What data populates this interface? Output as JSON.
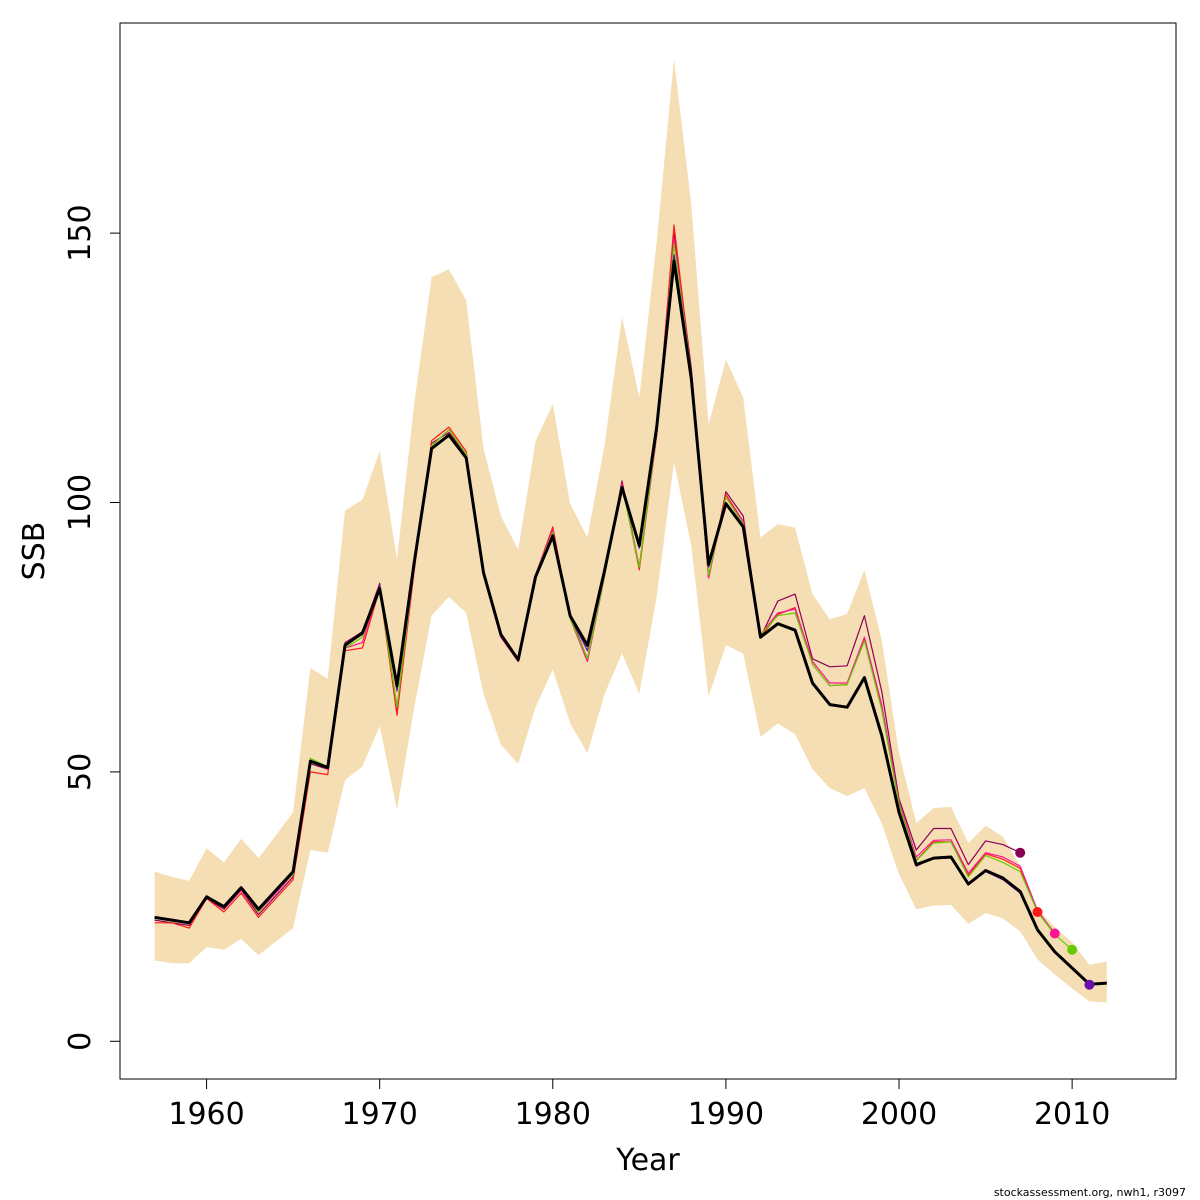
{
  "chart_data": {
    "type": "line",
    "title": "",
    "xlabel": "Year",
    "ylabel": "SSB",
    "xlim": [
      1955,
      2016
    ],
    "ylim": [
      -7,
      189
    ],
    "x_ticks": [
      1960,
      1970,
      1980,
      1990,
      2000,
      2010
    ],
    "y_ticks": [
      0,
      50,
      100,
      150
    ],
    "grid": false,
    "colors": {
      "band": "#f5deb3",
      "main": "#000000",
      "retro": [
        "#8b0057",
        "#ff1a1a",
        "#ff1493",
        "#66cc00",
        "#6a0dad"
      ]
    },
    "confidence_band": {
      "years": [
        1957,
        1958,
        1959,
        1960,
        1961,
        1962,
        1963,
        1964,
        1965,
        1966,
        1967,
        1968,
        1969,
        1970,
        1971,
        1972,
        1973,
        1974,
        1975,
        1976,
        1977,
        1978,
        1979,
        1980,
        1981,
        1982,
        1983,
        1984,
        1985,
        1986,
        1987,
        1988,
        1989,
        1990,
        1991,
        1992,
        1993,
        1994,
        1995,
        1996,
        1997,
        1998,
        1999,
        2000,
        2001,
        2002,
        2003,
        2004,
        2005,
        2006,
        2007,
        2008,
        2009,
        2010,
        2011,
        2012
      ],
      "lower": [
        15,
        14.5,
        14.5,
        17.5,
        17,
        19,
        16,
        18.5,
        21,
        35.5,
        35,
        48.5,
        51,
        58.5,
        43,
        62,
        79,
        82.5,
        79.5,
        64.5,
        55,
        51.5,
        62,
        69,
        59,
        53.5,
        64.5,
        72,
        64.5,
        82.5,
        107.5,
        92,
        64,
        73.5,
        72,
        56.5,
        59,
        57,
        50.5,
        47,
        45.5,
        47,
        40.5,
        31,
        24.5,
        25.2,
        25.3,
        21.8,
        23.8,
        22.8,
        20.4,
        15.2,
        12.4,
        9.8,
        7.4,
        7.2
      ],
      "upper": [
        31.5,
        30.5,
        29.8,
        35.8,
        33.2,
        37.6,
        34,
        38.2,
        42.5,
        69.3,
        67.3,
        98.5,
        100.5,
        109.5,
        89.5,
        118.5,
        141.8,
        143.3,
        137.5,
        110,
        97.5,
        91.2,
        111.3,
        118.3,
        99.8,
        93.5,
        110.8,
        134.5,
        119.5,
        148.5,
        182.3,
        155.3,
        114.5,
        126.5,
        119.5,
        93.5,
        96,
        95.3,
        83,
        78.3,
        79.3,
        87.5,
        74.5,
        53.5,
        40.5,
        43.3,
        43.5,
        36.8,
        40,
        38,
        32.5,
        24.6,
        21.2,
        18.4,
        14.2,
        14.8
      ]
    },
    "series": [
      {
        "x": [
          1957,
          1958,
          1959,
          1960,
          1961,
          1962,
          1963,
          1964,
          1965,
          1966,
          1967,
          1968,
          1969,
          1970,
          1971,
          1972,
          1973,
          1974,
          1975,
          1976,
          1977,
          1978,
          1979,
          1980,
          1981,
          1982,
          1983,
          1984,
          1985,
          1986,
          1987,
          1988,
          1989,
          1990,
          1991,
          1992,
          1993,
          1994,
          1995,
          1996,
          1997,
          1998,
          1999,
          2000,
          2001,
          2002,
          2003,
          2004,
          2005,
          2006,
          2007
        ],
        "values": [
          22.5,
          22,
          21.5,
          26.5,
          24.5,
          28,
          23.5,
          27,
          30.5,
          51.5,
          50.5,
          74,
          76,
          85,
          61,
          89,
          111,
          113,
          109,
          87,
          75,
          70.5,
          86.5,
          95,
          79,
          71,
          87,
          104,
          88,
          113,
          150,
          125,
          86,
          102,
          97.5,
          75,
          81.7,
          83,
          71,
          69.5,
          69.7,
          79,
          65,
          45,
          35.5,
          39.5,
          39.5,
          32.8,
          37.2,
          36.5,
          35
        ]
      },
      {
        "x": [
          1957,
          1958,
          1959,
          1960,
          1961,
          1962,
          1963,
          1964,
          1965,
          1966,
          1967,
          1968,
          1969,
          1970,
          1971,
          1972,
          1973,
          1974,
          1975,
          1976,
          1977,
          1978,
          1979,
          1980,
          1981,
          1982,
          1983,
          1984,
          1985,
          1986,
          1987,
          1988,
          1989,
          1990,
          1991,
          1992,
          1993,
          1994,
          1995,
          1996,
          1997,
          1998,
          1999,
          2000,
          2001,
          2002,
          2003,
          2004,
          2005,
          2006,
          2007,
          2008
        ],
        "values": [
          22,
          22,
          21,
          26.5,
          24,
          27.5,
          23,
          26.5,
          30,
          50,
          49.5,
          72.5,
          73,
          84,
          60.5,
          87.5,
          111.5,
          114,
          109.5,
          86.5,
          75,
          70.5,
          86.5,
          95.5,
          78.5,
          70.5,
          86.5,
          103.5,
          87.5,
          112.5,
          151.5,
          124,
          86,
          101.5,
          96.5,
          75,
          79.2,
          80.5,
          70,
          66,
          66.2,
          74.8,
          62,
          44,
          33.6,
          37,
          37,
          30.8,
          34.8,
          33.8,
          32.1,
          24
        ]
      },
      {
        "x": [
          1957,
          1958,
          1959,
          1960,
          1961,
          1962,
          1963,
          1964,
          1965,
          1966,
          1967,
          1968,
          1969,
          1970,
          1971,
          1972,
          1973,
          1974,
          1975,
          1976,
          1977,
          1978,
          1979,
          1980,
          1981,
          1982,
          1983,
          1984,
          1985,
          1986,
          1987,
          1988,
          1989,
          1990,
          1991,
          1992,
          1993,
          1994,
          1995,
          1996,
          1997,
          1998,
          1999,
          2000,
          2001,
          2002,
          2003,
          2004,
          2005,
          2006,
          2007,
          2008,
          2009
        ],
        "values": [
          23,
          22.5,
          22,
          26.5,
          25,
          28,
          24,
          27.5,
          31,
          52,
          50.5,
          73,
          74,
          84.5,
          62,
          88,
          110.5,
          113.5,
          109,
          86.5,
          75,
          70.5,
          86.5,
          95,
          78.5,
          70.5,
          86.5,
          103.5,
          88,
          112.5,
          149,
          124,
          86,
          101,
          96.5,
          75.5,
          79.5,
          80.2,
          70.5,
          66.5,
          66.5,
          75,
          62.5,
          44.5,
          34.2,
          37.3,
          37.4,
          31.2,
          35,
          34.2,
          32.5,
          24.3,
          20
        ]
      },
      {
        "x": [
          1957,
          1958,
          1959,
          1960,
          1961,
          1962,
          1963,
          1964,
          1965,
          1966,
          1967,
          1968,
          1969,
          1970,
          1971,
          1972,
          1973,
          1974,
          1975,
          1976,
          1977,
          1978,
          1979,
          1980,
          1981,
          1982,
          1983,
          1984,
          1985,
          1986,
          1987,
          1988,
          1989,
          1990,
          1991,
          1992,
          1993,
          1994,
          1995,
          1996,
          1997,
          1998,
          1999,
          2000,
          2001,
          2002,
          2003,
          2004,
          2005,
          2006,
          2007,
          2008,
          2009,
          2010
        ],
        "values": [
          23,
          22.5,
          22,
          27,
          25,
          28.5,
          24,
          28,
          31,
          52.5,
          51,
          73,
          75,
          84,
          62,
          88.5,
          110.5,
          113.5,
          109,
          87,
          75.5,
          71,
          86.5,
          94.5,
          78.5,
          71,
          86.5,
          103,
          88,
          113,
          148,
          124,
          86.5,
          101,
          96,
          75.5,
          79,
          79.5,
          70,
          66,
          66.2,
          74.3,
          61.5,
          44,
          33.5,
          36.8,
          37,
          30.5,
          34.5,
          33.2,
          31.5,
          24,
          19.8,
          17
        ]
      },
      {
        "x": [
          1957,
          1958,
          1959,
          1960,
          1961,
          1962,
          1963,
          1964,
          1965,
          1966,
          1967,
          1968,
          1969,
          1970,
          1971,
          1972,
          1973,
          1974,
          1975,
          1976,
          1977,
          1978,
          1979,
          1980,
          1981,
          1982,
          1983,
          1984,
          1985,
          1986,
          1987,
          1988,
          1989,
          1990,
          1991,
          1992,
          1993,
          1994,
          1995,
          1996,
          1997,
          1998,
          1999,
          2000,
          2001,
          2002,
          2003,
          2004,
          2005,
          2006,
          2007,
          2008,
          2009,
          2010,
          2011
        ],
        "values": [
          23,
          22.5,
          22,
          27,
          25,
          28.5,
          24.5,
          28,
          31.5,
          52,
          51,
          73.5,
          75.5,
          84.5,
          65,
          89,
          110,
          112.5,
          108.5,
          87,
          75.5,
          71,
          86.5,
          94,
          79,
          72.5,
          87,
          103,
          91.5,
          113,
          146,
          124,
          88,
          100,
          95.5,
          75,
          77.5,
          76.5,
          66.5,
          62.5,
          62,
          67.5,
          57,
          42.5,
          32.5,
          34,
          34,
          29,
          31.5,
          30,
          27.5,
          20.5,
          16.5,
          13.5,
          10.5
        ]
      },
      {
        "x": [
          1957,
          1958,
          1959,
          1960,
          1961,
          1962,
          1963,
          1964,
          1965,
          1966,
          1967,
          1968,
          1969,
          1970,
          1971,
          1972,
          1973,
          1974,
          1975,
          1976,
          1977,
          1978,
          1979,
          1980,
          1981,
          1982,
          1983,
          1984,
          1985,
          1986,
          1987,
          1988,
          1989,
          1990,
          1991,
          1992,
          1993,
          1994,
          1995,
          1996,
          1997,
          1998,
          1999,
          2000,
          2001,
          2002,
          2003,
          2004,
          2005,
          2006,
          2007,
          2008,
          2009,
          2010,
          2011,
          2012
        ],
        "values": [
          23,
          22.5,
          22,
          26.8,
          25,
          28.5,
          24.5,
          28,
          31.5,
          52,
          50.8,
          73.5,
          75.8,
          84,
          66,
          89,
          110,
          112.5,
          108.3,
          87,
          75.5,
          70.8,
          86.2,
          93.8,
          79,
          73.5,
          87.5,
          102.8,
          92,
          114,
          144.8,
          123,
          88.5,
          99.8,
          95.5,
          75,
          77.5,
          76.3,
          66.5,
          62.5,
          62,
          67.5,
          56.8,
          42.5,
          32.8,
          34,
          34.2,
          29.2,
          31.7,
          30.3,
          27.8,
          20.7,
          16.6,
          13.6,
          10.6,
          10.8
        ]
      }
    ],
    "endpoints": [
      {
        "x": 2007,
        "y": 35
      },
      {
        "x": 2008,
        "y": 24
      },
      {
        "x": 2009,
        "y": 20
      },
      {
        "x": 2010,
        "y": 17
      },
      {
        "x": 2011,
        "y": 10.5
      }
    ]
  },
  "footer": "stockassessment.org, nwh1, r3097"
}
